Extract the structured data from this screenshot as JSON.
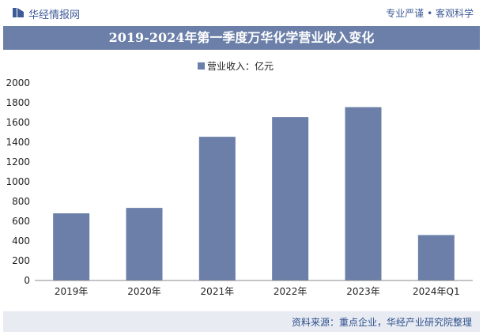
{
  "header": {
    "brand": "华经情报网",
    "tagline": "专业严谨 • 客观科学"
  },
  "chart_data": {
    "type": "bar",
    "title": "2019-2024年第一季度万华化学营业收入变化",
    "categories": [
      "2019年",
      "2020年",
      "2021年",
      "2022年",
      "2023年",
      "2024年Q1"
    ],
    "series": [
      {
        "name": "营业收入：亿元",
        "values": [
          680,
          735,
          1455,
          1655,
          1755,
          460
        ]
      }
    ],
    "ylim": [
      0,
      2000
    ],
    "yticks": [
      0,
      200,
      400,
      600,
      800,
      1000,
      1200,
      1400,
      1600,
      1800,
      2000
    ],
    "grid": false,
    "legend": "top-center",
    "bar_color": "#6b7fa8"
  },
  "footer": {
    "source": "资料来源：重点企业，华经产业研究院整理"
  }
}
